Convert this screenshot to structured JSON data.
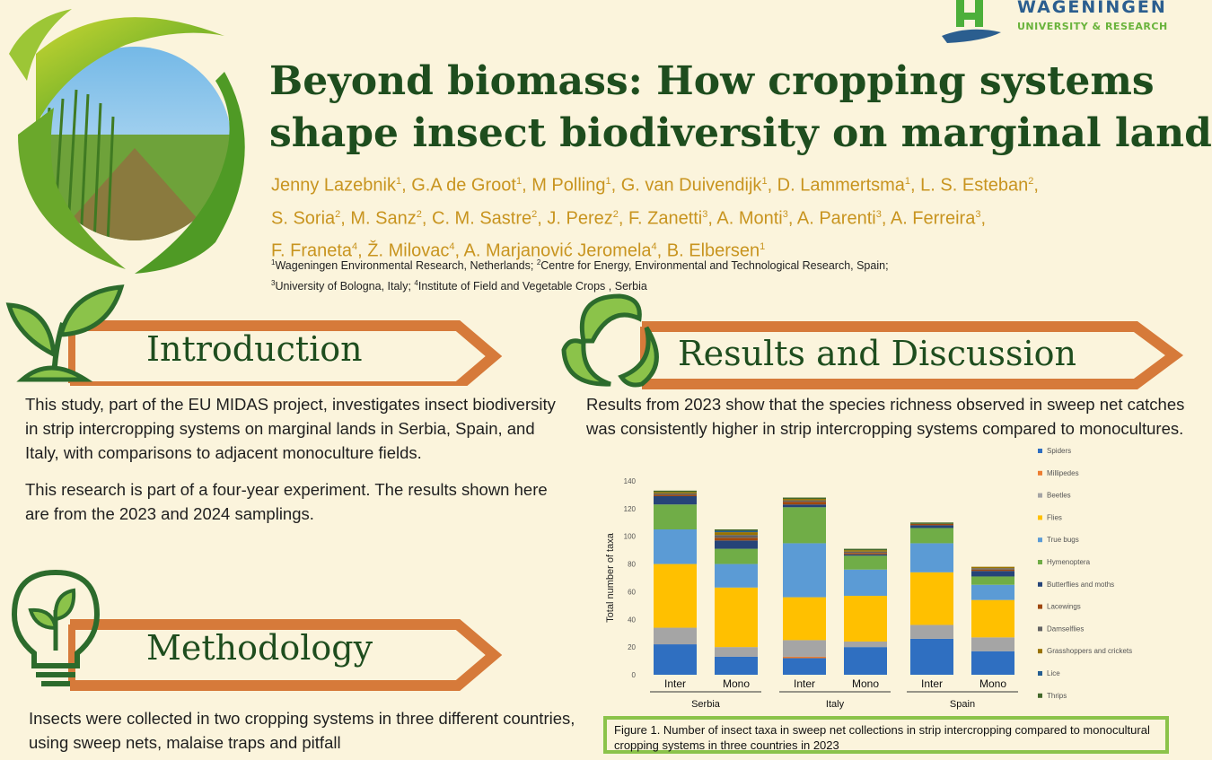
{
  "logo": {
    "name_line1": "WAGENINGEN",
    "name_line2": "UNIVERSITY & RESEARCH"
  },
  "title": {
    "line1": "Beyond biomass: How cropping systems",
    "line2": "shape insect biodiversity on marginal lands"
  },
  "authors": {
    "line1": [
      {
        "n": "Jenny Lazebnik",
        "s": "1"
      },
      {
        "n": ", G.A de Groot",
        "s": "1"
      },
      {
        "n": ", M Polling",
        "s": "1"
      },
      {
        "n": ", G. van Duivendijk",
        "s": "1"
      },
      {
        "n": ", D. Lammertsma",
        "s": "1"
      },
      {
        "n": ",  L. S. Esteban",
        "s": "2"
      },
      {
        "n": ",",
        "s": ""
      }
    ],
    "line2": [
      {
        "n": "S. Soria",
        "s": "2"
      },
      {
        "n": ", M. Sanz",
        "s": "2"
      },
      {
        "n": ",  C. M. Sastre",
        "s": "2"
      },
      {
        "n": ", J. Perez",
        "s": "2"
      },
      {
        "n": ",  F. Zanetti",
        "s": "3"
      },
      {
        "n": ", A. Monti",
        "s": "3"
      },
      {
        "n": ", A. Parenti",
        "s": "3"
      },
      {
        "n": ", A. Ferreira",
        "s": "3"
      },
      {
        "n": ",",
        "s": ""
      }
    ],
    "line3": [
      {
        "n": "F. Franeta",
        "s": "4"
      },
      {
        "n": ", Ž. Milovac",
        "s": "4"
      },
      {
        "n": ", A. Marjanović Jeromela",
        "s": "4"
      },
      {
        "n": ", B. Elbersen",
        "s": "1"
      }
    ]
  },
  "affiliations": {
    "line1": [
      {
        "s": "1",
        "t": "Wageningen Environmental Research, Netherlands; "
      },
      {
        "s": "2",
        "t": "Centre for Energy, Environmental and Technological Research, Spain;"
      }
    ],
    "line2": [
      {
        "s": "3",
        "t": "University of Bologna, Italy; "
      },
      {
        "s": "4",
        "t": "Institute of Field and Vegetable Crops , Serbia"
      }
    ]
  },
  "sections": {
    "introduction": {
      "heading": "Introduction",
      "paragraphs": [
        "This study, part of the EU MIDAS project, investigates insect biodiversity in strip intercropping systems on marginal lands in Serbia, Spain, and Italy, with comparisons to adjacent monoculture fields.",
        "This research is part of a four-year experiment. The results shown here are from the 2023 and 2024 samplings."
      ]
    },
    "methodology": {
      "heading": "Methodology",
      "text": "Insects were collected in two cropping systems in three different countries, using sweep nets, malaise traps and pitfall"
    },
    "results": {
      "heading": "Results and Discussion",
      "text": "Results from 2023 show that the species richness observed in sweep net catches was consistently higher in strip intercropping systems compared to monocultures."
    }
  },
  "caption": "Figure 1. Number of insect taxa in sweep net collections in strip intercropping compared to monocultural cropping systems in three countries in 2023",
  "colors": {
    "title_green": "#1e4d1e",
    "author_gold": "#c8941f",
    "arrow_orange": "#d67a3a",
    "background": "#fbf4dc"
  },
  "chart_data": {
    "type": "bar",
    "stacked": true,
    "ylabel": "Total number of taxa",
    "ylim": [
      0,
      140
    ],
    "yticks": [
      0,
      20,
      40,
      60,
      80,
      100,
      120,
      140
    ],
    "categories": [
      "Inter",
      "Mono",
      "Inter",
      "Mono",
      "Inter",
      "Mono"
    ],
    "groups": [
      {
        "label": "Serbia",
        "categories": [
          "Inter",
          "Mono"
        ]
      },
      {
        "label": "Italy",
        "categories": [
          "Inter",
          "Mono"
        ]
      },
      {
        "label": "Spain",
        "categories": [
          "Inter",
          "Mono"
        ]
      }
    ],
    "series": [
      {
        "name": "Spiders",
        "color": "#2f6fc1",
        "values": [
          22,
          13,
          12,
          20,
          26,
          17
        ]
      },
      {
        "name": "Millipedes",
        "color": "#ed7d31",
        "values": [
          0,
          0,
          1,
          0,
          0,
          0
        ]
      },
      {
        "name": "Beetles",
        "color": "#a5a5a5",
        "values": [
          12,
          7,
          12,
          4,
          10,
          10
        ]
      },
      {
        "name": "Flies",
        "color": "#ffc000",
        "values": [
          46,
          43,
          31,
          33,
          38,
          27
        ]
      },
      {
        "name": "True bugs",
        "color": "#5b9bd5",
        "values": [
          25,
          17,
          39,
          19,
          21,
          11
        ]
      },
      {
        "name": "Hymenoptera",
        "color": "#70ad47",
        "values": [
          18,
          11,
          26,
          10,
          11,
          6
        ]
      },
      {
        "name": "Butterflies and moths",
        "color": "#264478",
        "values": [
          6,
          6,
          2,
          1,
          2,
          4
        ]
      },
      {
        "name": "Lacewings",
        "color": "#9e480e",
        "values": [
          1,
          2,
          2,
          1,
          1,
          1
        ]
      },
      {
        "name": "Damselflies",
        "color": "#636363",
        "values": [
          1,
          2,
          1,
          1,
          0,
          1
        ]
      },
      {
        "name": "Grasshoppers and crickets",
        "color": "#997300",
        "values": [
          1,
          2,
          1,
          1,
          0,
          1
        ]
      },
      {
        "name": "Lice",
        "color": "#255e91",
        "values": [
          0,
          1,
          0,
          0,
          0,
          0
        ]
      },
      {
        "name": "Thrips",
        "color": "#43682b",
        "values": [
          1,
          1,
          1,
          1,
          1,
          0
        ]
      }
    ]
  }
}
